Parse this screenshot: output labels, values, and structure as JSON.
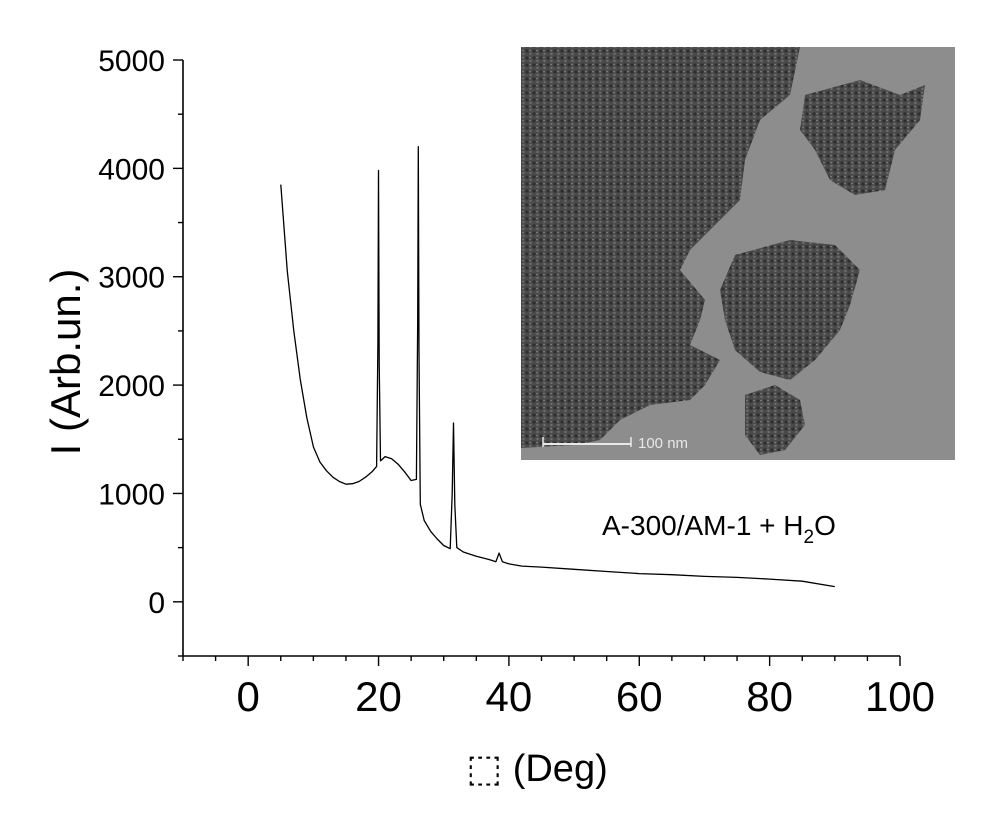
{
  "chart_data": {
    "type": "line",
    "xlabel": "⬚  (Deg)",
    "ylabel": "I (Arb.un.)",
    "xlim": [
      -10,
      100
    ],
    "ylim": [
      -500,
      5000
    ],
    "xticks": [
      0,
      20,
      40,
      60,
      80,
      100
    ],
    "yticks": [
      0,
      1000,
      2000,
      3000,
      4000,
      5000
    ],
    "x_minor_step": 5,
    "y_minor_step": 500,
    "grid": false,
    "annotation": {
      "text": "A-300/AM-1 + H",
      "subscript": "2",
      "suffix": "O"
    },
    "inset": {
      "kind": "TEM micrograph",
      "position": "top-right",
      "scale_bar_label": "100 nm"
    },
    "series": [
      {
        "color": "#000000",
        "x": [
          5,
          6,
          7,
          8,
          9,
          10,
          11,
          12,
          13,
          14,
          15,
          16,
          17,
          18,
          19,
          19.7,
          19.9,
          20.0,
          20.1,
          20.3,
          21,
          22,
          23,
          24,
          25,
          25.8,
          26.0,
          26.1,
          26.2,
          26.4,
          27,
          28,
          29,
          30,
          31,
          31.3,
          31.5,
          31.7,
          32,
          33,
          35,
          37,
          38,
          38.5,
          39,
          40,
          41,
          42,
          45,
          50,
          55,
          60,
          65,
          70,
          75,
          80,
          85,
          90
        ],
        "y": [
          3850,
          3050,
          2500,
          2050,
          1700,
          1430,
          1290,
          1210,
          1150,
          1110,
          1085,
          1090,
          1110,
          1150,
          1200,
          1250,
          2400,
          3980,
          2200,
          1300,
          1340,
          1320,
          1270,
          1200,
          1120,
          1130,
          2600,
          4200,
          2300,
          900,
          750,
          650,
          580,
          520,
          490,
          1000,
          1650,
          900,
          500,
          460,
          420,
          390,
          370,
          450,
          370,
          350,
          340,
          330,
          320,
          300,
          280,
          260,
          250,
          235,
          225,
          210,
          190,
          140
        ]
      }
    ]
  }
}
